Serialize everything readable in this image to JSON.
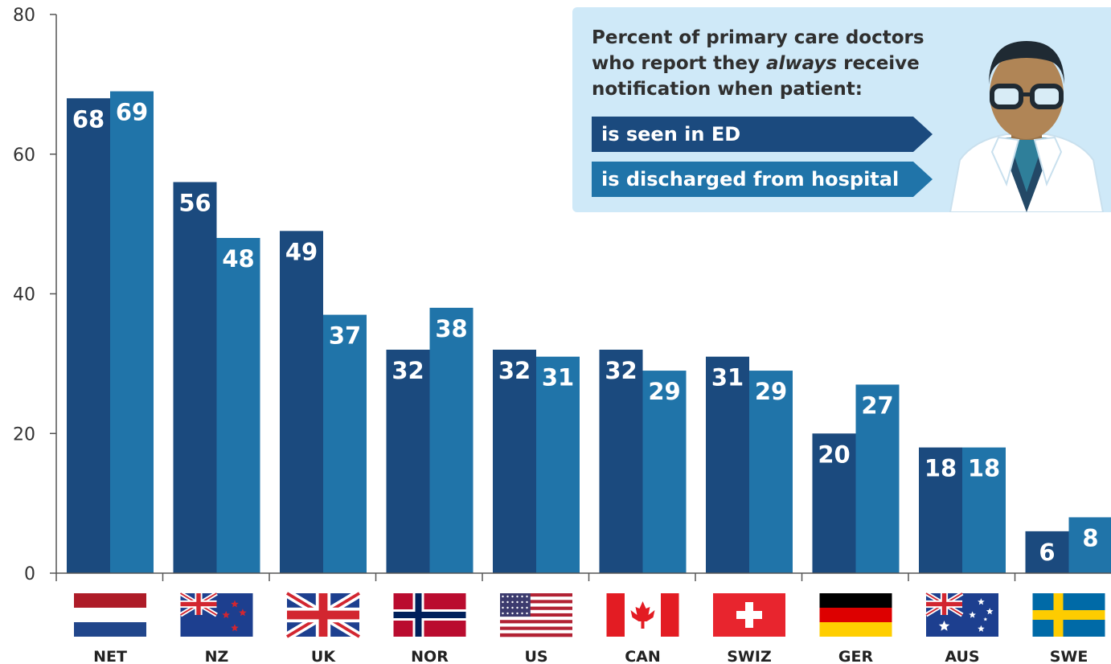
{
  "legend": {
    "title_pre": "Percent of primary care doctors who report they ",
    "title_em": "always",
    "title_post": " receive notification when patient:",
    "items": [
      "is seen in ED",
      "is discharged from hospital"
    ]
  },
  "colors": {
    "seen_in_ed": "#1b4a7e",
    "discharged": "#2074a9",
    "legend_bg": "#cfe9f8",
    "axis": "#555555"
  },
  "chart_data": {
    "type": "bar",
    "categories": [
      "NET",
      "NZ",
      "UK",
      "NOR",
      "US",
      "CAN",
      "SWIZ",
      "GER",
      "AUS",
      "SWE"
    ],
    "series": [
      {
        "name": "is seen in ED",
        "values": [
          68,
          56,
          49,
          32,
          32,
          32,
          31,
          20,
          18,
          6
        ]
      },
      {
        "name": "is discharged from hospital",
        "values": [
          69,
          48,
          37,
          38,
          31,
          29,
          29,
          27,
          18,
          8
        ]
      }
    ],
    "ylim": [
      0,
      80
    ],
    "yticks": [
      0,
      20,
      40,
      60,
      80
    ],
    "flag_icons": [
      "netherlands-flag-icon",
      "new-zealand-flag-icon",
      "uk-flag-icon",
      "norway-flag-icon",
      "us-flag-icon",
      "canada-flag-icon",
      "switzerland-flag-icon",
      "germany-flag-icon",
      "australia-flag-icon",
      "sweden-flag-icon"
    ],
    "legend_position": "top-right"
  }
}
